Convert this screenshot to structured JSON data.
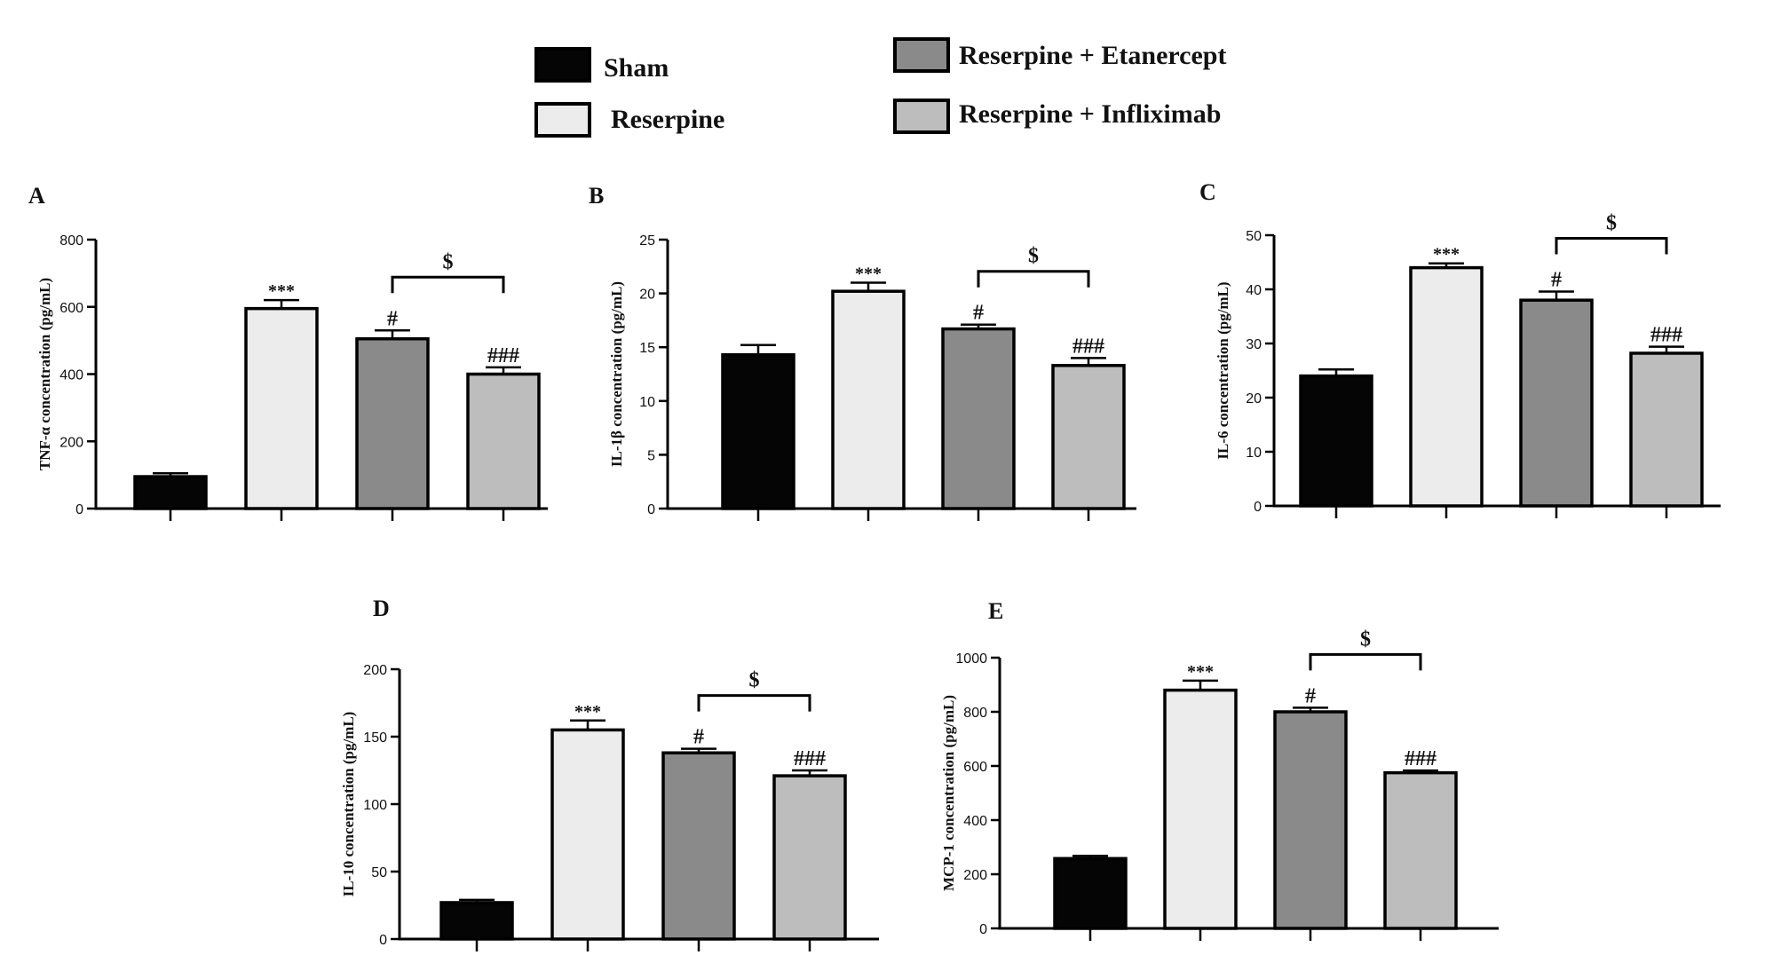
{
  "legend": [
    {
      "label": "Sham",
      "color": "#050505"
    },
    {
      "label": "Reserpine",
      "color": "#ececec"
    },
    {
      "label": "Reserpine + Etanercept",
      "color": "#8a8a8a"
    },
    {
      "label": "Reserpine + Infliximab",
      "color": "#bdbdbd"
    }
  ],
  "chart_data": [
    {
      "panel": "A",
      "type": "bar",
      "categories": [
        "Sham",
        "Reserpine",
        "Reserpine + Etanercept",
        "Reserpine + Infliximab"
      ],
      "values": [
        95,
        595,
        505,
        400
      ],
      "errors": [
        10,
        25,
        25,
        20
      ],
      "ylabel": "TNF-α concentration (pg/mL)",
      "ylim": [
        0,
        800
      ],
      "yticks": [
        0,
        200,
        400,
        600,
        800
      ],
      "annotations": [
        "",
        "***",
        "#",
        "###"
      ],
      "comparison": {
        "from": 2,
        "to": 3,
        "label": "$"
      }
    },
    {
      "panel": "B",
      "type": "bar",
      "categories": [
        "Sham",
        "Reserpine",
        "Reserpine + Etanercept",
        "Reserpine + Infliximab"
      ],
      "values": [
        14.3,
        20.2,
        16.7,
        13.3
      ],
      "errors": [
        0.9,
        0.8,
        0.4,
        0.7
      ],
      "ylabel": "IL-1β concentration (pg/mL)",
      "ylim": [
        0,
        25
      ],
      "yticks": [
        0,
        5,
        10,
        15,
        20,
        25
      ],
      "annotations": [
        "",
        "***",
        "#",
        "###"
      ],
      "comparison": {
        "from": 2,
        "to": 3,
        "label": "$"
      }
    },
    {
      "panel": "C",
      "type": "bar",
      "categories": [
        "Sham",
        "Reserpine",
        "Reserpine + Etanercept",
        "Reserpine + Infliximab"
      ],
      "values": [
        24,
        44,
        38,
        28.2
      ],
      "errors": [
        1.2,
        0.8,
        1.6,
        1.2
      ],
      "ylabel": "IL-6 concentration (pg/mL)",
      "ylim": [
        0,
        50
      ],
      "yticks": [
        0,
        10,
        20,
        30,
        40,
        50
      ],
      "annotations": [
        "",
        "***",
        "#",
        "###"
      ],
      "comparison": {
        "from": 2,
        "to": 3,
        "label": "$"
      }
    },
    {
      "panel": "D",
      "type": "bar",
      "categories": [
        "Sham",
        "Reserpine",
        "Reserpine + Etanercept",
        "Reserpine + Infliximab"
      ],
      "values": [
        27,
        155,
        138,
        121
      ],
      "errors": [
        2,
        7,
        3,
        4
      ],
      "ylabel": "IL-10 concentration (pg/mL)",
      "ylim": [
        0,
        200
      ],
      "yticks": [
        0,
        50,
        100,
        150,
        200
      ],
      "annotations": [
        "",
        "***",
        "#",
        "###"
      ],
      "comparison": {
        "from": 2,
        "to": 3,
        "label": "$"
      }
    },
    {
      "panel": "E",
      "type": "bar",
      "categories": [
        "Sham",
        "Reserpine",
        "Reserpine + Etanercept",
        "Reserpine + Infliximab"
      ],
      "values": [
        258,
        880,
        800,
        575
      ],
      "errors": [
        10,
        35,
        15,
        8
      ],
      "ylabel": "MCP-1 concentration (pg/mL)",
      "ylim": [
        0,
        1000
      ],
      "yticks": [
        0,
        200,
        400,
        600,
        800,
        1000
      ],
      "annotations": [
        "",
        "***",
        "#",
        "###"
      ],
      "comparison": {
        "from": 2,
        "to": 3,
        "label": "$"
      }
    }
  ]
}
